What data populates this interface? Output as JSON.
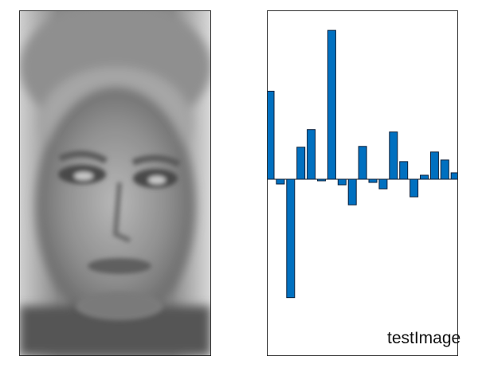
{
  "image_panel": {
    "depicts": "grayscale-face-image"
  },
  "chart_data": {
    "type": "bar",
    "values": [
      110,
      -6,
      -148,
      40,
      62,
      -2,
      186,
      -7,
      -32,
      41,
      -4,
      -12,
      59,
      22,
      -22,
      5,
      34,
      24,
      8
    ],
    "ylim": [
      -220,
      210
    ],
    "grid": false,
    "bar_color": "#0070c0",
    "bar_edge_color": "#0a1f3a"
  },
  "caption": "testImage"
}
